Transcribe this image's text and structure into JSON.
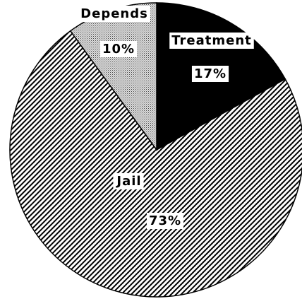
{
  "chart_data": {
    "type": "pie",
    "categories": [
      "Treatment",
      "Jail",
      "Depends"
    ],
    "values": [
      17,
      73,
      10
    ],
    "value_labels": [
      "17%",
      "73%",
      "10%"
    ],
    "color": "#000000",
    "patterns": [
      "solid",
      "diagonal",
      "dotted"
    ],
    "start_angle": 0,
    "direction": "clockwise"
  }
}
